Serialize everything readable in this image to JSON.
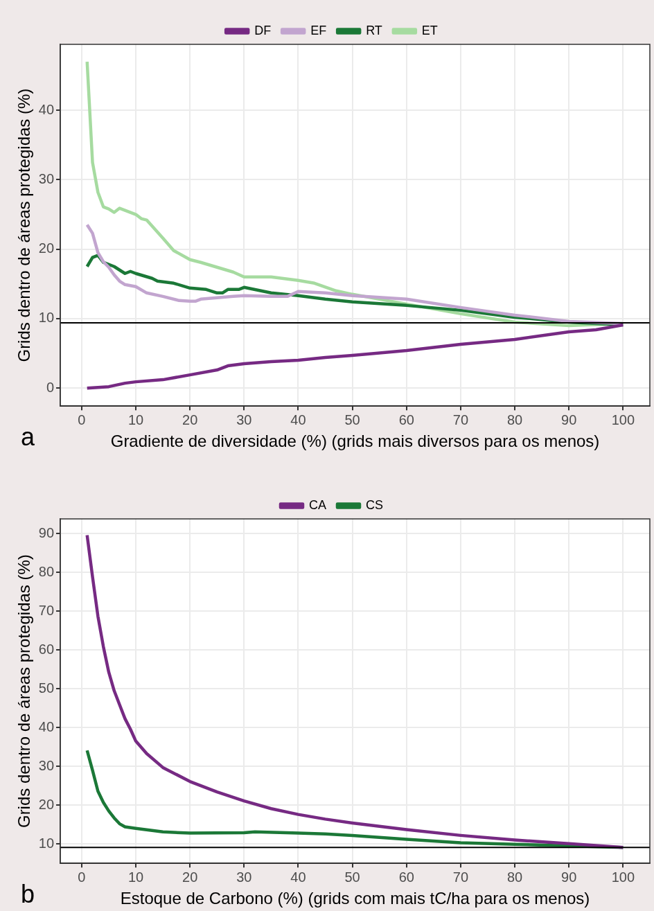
{
  "chart_data": [
    {
      "type": "line",
      "xlabel": "Gradiente de diversidade (%) (grids mais diversos para os menos)",
      "ylabel": "Grids dentro de áreas protegidas (%)",
      "annotations": [
        "a"
      ],
      "xlim": [
        -3.95,
        104.95
      ],
      "ylim": [
        -2.6,
        49.5
      ],
      "xticks": [
        0,
        10,
        20,
        30,
        40,
        50,
        60,
        70,
        80,
        90,
        100
      ],
      "yticks": [
        0,
        10,
        20,
        30,
        40
      ],
      "grid": true,
      "legend": "top",
      "marker": "none",
      "ref_lines": [
        {
          "axis": "y",
          "value": 9.4,
          "color": "#000000"
        }
      ],
      "series": [
        {
          "name": "DF",
          "color": "#762a83",
          "x": [
            1,
            5,
            8,
            10,
            15,
            20,
            25,
            27,
            30,
            35,
            40,
            45,
            50,
            60,
            70,
            80,
            90,
            95,
            100
          ],
          "values": [
            0,
            0.2,
            0.7,
            0.9,
            1.2,
            1.9,
            2.6,
            3.2,
            3.5,
            3.8,
            4.0,
            4.4,
            4.7,
            5.4,
            6.3,
            7.0,
            8.1,
            8.4,
            9.1
          ]
        },
        {
          "name": "EF",
          "color": "#c2a5cf",
          "x": [
            1,
            2,
            3,
            4,
            5,
            6,
            7,
            8,
            10,
            12,
            15,
            18,
            20,
            21,
            22,
            25,
            28,
            30,
            35,
            38,
            40,
            45,
            50,
            60,
            70,
            80,
            90,
            100
          ],
          "values": [
            23.5,
            22.3,
            19.5,
            18.2,
            17.4,
            16.3,
            15.4,
            14.9,
            14.6,
            13.7,
            13.2,
            12.6,
            12.5,
            12.5,
            12.8,
            13.0,
            13.2,
            13.3,
            13.2,
            13.2,
            13.9,
            13.7,
            13.3,
            12.8,
            11.6,
            10.5,
            9.6,
            9.3
          ]
        },
        {
          "name": "RT",
          "color": "#1b7837",
          "x": [
            1,
            2,
            3,
            4,
            6,
            8,
            9,
            10,
            13,
            14,
            17,
            20,
            23,
            25,
            26,
            27,
            29,
            30,
            35,
            40,
            45,
            50,
            60,
            70,
            80,
            90,
            100
          ],
          "values": [
            17.5,
            18.8,
            19.1,
            18.1,
            17.5,
            16.5,
            16.8,
            16.5,
            15.8,
            15.4,
            15.1,
            14.4,
            14.2,
            13.7,
            13.7,
            14.2,
            14.2,
            14.5,
            13.7,
            13.3,
            12.8,
            12.4,
            11.9,
            11.2,
            10.2,
            9.5,
            9.1
          ]
        },
        {
          "name": "ET",
          "color": "#a6dba0",
          "x": [
            1,
            2,
            3,
            4,
            5,
            6,
            7,
            9,
            10,
            11,
            12,
            15,
            17,
            20,
            22,
            25,
            28,
            30,
            32,
            35,
            38,
            40,
            43,
            47,
            50,
            60,
            70,
            80,
            90,
            100
          ],
          "values": [
            47.0,
            32.5,
            28.2,
            26.1,
            25.8,
            25.3,
            25.9,
            25.3,
            25.0,
            24.4,
            24.2,
            21.6,
            19.8,
            18.5,
            18.1,
            17.4,
            16.7,
            16.0,
            16.0,
            16.0,
            15.7,
            15.5,
            15.1,
            14.0,
            13.5,
            12.1,
            10.7,
            9.5,
            9.0,
            9.3
          ]
        }
      ]
    },
    {
      "type": "line",
      "xlabel": "Estoque de Carbono (%) (grids com mais tC/ha para os menos)",
      "ylabel": "Grids dentro de áreas protegidas (%)",
      "annotations": [
        "b"
      ],
      "xlim": [
        -3.95,
        104.95
      ],
      "ylim": [
        5.0,
        93.8
      ],
      "xticks": [
        0,
        10,
        20,
        30,
        40,
        50,
        60,
        70,
        80,
        90,
        100
      ],
      "yticks": [
        10,
        20,
        30,
        40,
        50,
        60,
        70,
        80,
        90
      ],
      "grid": true,
      "legend": "top",
      "marker": "none",
      "ref_lines": [
        {
          "axis": "y",
          "value": 9.1,
          "color": "#000000"
        }
      ],
      "series": [
        {
          "name": "CA",
          "color": "#762a83",
          "x": [
            1,
            2,
            3,
            4,
            5,
            6,
            7,
            8,
            9,
            10,
            12,
            15,
            20,
            25,
            30,
            35,
            40,
            45,
            50,
            60,
            70,
            80,
            90,
            100
          ],
          "values": [
            89.6,
            78.9,
            68.7,
            60.9,
            54.3,
            49.5,
            45.9,
            42.3,
            39.6,
            36.5,
            33.3,
            29.7,
            26.1,
            23.4,
            21.1,
            19.1,
            17.6,
            16.4,
            15.4,
            13.7,
            12.2,
            11.0,
            10.1,
            9.1
          ]
        },
        {
          "name": "CS",
          "color": "#1b7837",
          "x": [
            1,
            2,
            3,
            4,
            5,
            6,
            7,
            8,
            10,
            15,
            20,
            30,
            32,
            40,
            45,
            50,
            60,
            70,
            80,
            90,
            100
          ],
          "values": [
            34.1,
            29.0,
            23.6,
            20.7,
            18.5,
            16.7,
            15.2,
            14.4,
            14.0,
            13.1,
            12.8,
            12.9,
            13.1,
            12.8,
            12.6,
            12.2,
            11.2,
            10.3,
            9.9,
            9.5,
            9.1
          ]
        }
      ]
    }
  ]
}
